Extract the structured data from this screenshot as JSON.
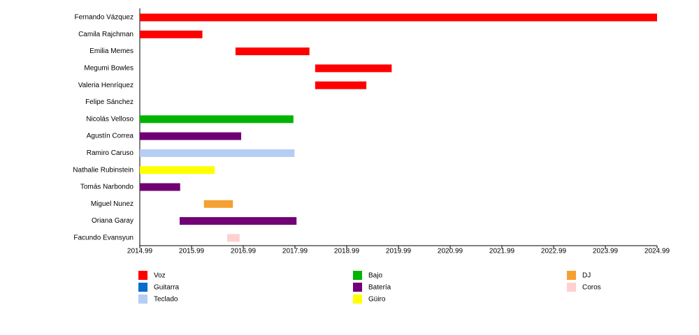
{
  "chart_data": {
    "type": "timeline",
    "categories": [
      "Fernando Vázquez",
      "Camila Rajchman",
      "Emilia Memes",
      "Megumi Bowles",
      "Valeria Henríquez",
      "Felipe Sánchez",
      "Nicolás Velloso",
      "Agustín Correa",
      "Ramiro Caruso",
      "Nathalie Rubinstein",
      "Tomás Narbondo",
      "Miguel Nunez",
      "Oriana Garay",
      "Facundo Evansyun"
    ],
    "series": [
      {
        "name": "Voz",
        "color": "#ff0000",
        "values": [
          [
            2014.99,
            2024.99
          ],
          [
            2014.99,
            2016.2
          ],
          [
            2016.84,
            2018.27
          ],
          [
            2018.38,
            2019.86
          ],
          [
            2018.38,
            2019.37
          ],
          null,
          null,
          null,
          null,
          null,
          null,
          null,
          null,
          null
        ]
      },
      {
        "name": "Guitarra",
        "color": "#0a6ccc",
        "values": [
          null,
          null,
          null,
          null,
          null,
          null,
          null,
          null,
          null,
          null,
          null,
          null,
          null,
          null
        ]
      },
      {
        "name": "Teclado",
        "color": "#b5cdf5",
        "values": [
          null,
          null,
          null,
          null,
          null,
          null,
          null,
          null,
          [
            2014.99,
            2017.98
          ],
          null,
          null,
          null,
          null,
          null
        ]
      },
      {
        "name": "Bajo",
        "color": "#00b400",
        "values": [
          null,
          null,
          null,
          null,
          null,
          null,
          [
            2014.99,
            2017.96
          ],
          null,
          null,
          null,
          null,
          null,
          null,
          null
        ]
      },
      {
        "name": "Batería",
        "color": "#700074",
        "values": [
          null,
          null,
          null,
          null,
          null,
          null,
          null,
          [
            2014.99,
            2016.95
          ],
          null,
          null,
          [
            2014.99,
            2015.77
          ],
          null,
          [
            2015.76,
            2018.02
          ],
          null
        ]
      },
      {
        "name": "Güiro",
        "color": "#ffff00",
        "values": [
          null,
          null,
          null,
          null,
          null,
          null,
          null,
          null,
          null,
          [
            2014.99,
            2016.44
          ],
          null,
          null,
          null,
          null
        ]
      },
      {
        "name": "DJ",
        "color": "#f5a030",
        "values": [
          null,
          null,
          null,
          null,
          null,
          null,
          null,
          null,
          null,
          null,
          null,
          [
            2016.23,
            2016.79
          ],
          null,
          null
        ]
      },
      {
        "name": "Coros",
        "color": "#ffd0d0",
        "values": [
          null,
          null,
          null,
          null,
          null,
          null,
          null,
          null,
          null,
          null,
          null,
          null,
          null,
          [
            2016.68,
            2016.92
          ]
        ]
      }
    ],
    "xlim": [
      2014.99,
      2024.99
    ],
    "xticks": [
      2014.99,
      2015.99,
      2016.99,
      2017.99,
      2018.99,
      2019.99,
      2020.99,
      2021.99,
      2022.99,
      2023.99,
      2024.99
    ]
  }
}
